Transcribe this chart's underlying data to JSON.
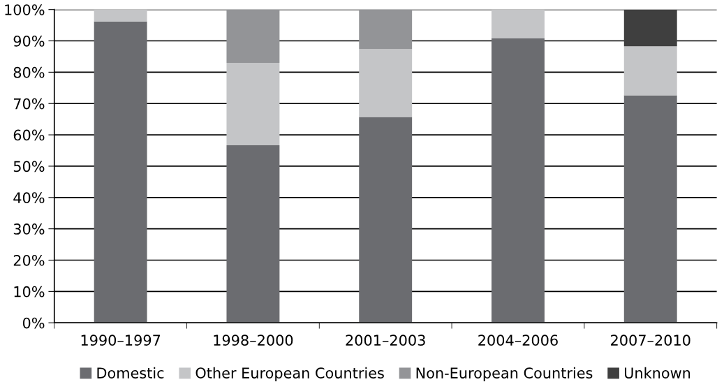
{
  "chart_data": {
    "type": "bar",
    "stacked": true,
    "categories": [
      "1990–1997",
      "1998–2000",
      "2001–2003",
      "2004–2006",
      "2007–2010"
    ],
    "series": [
      {
        "name": "Domestic",
        "color": "#6b6c70",
        "values": [
          96.2,
          56.7,
          65.7,
          90.8,
          72.6
        ]
      },
      {
        "name": "Other European Countries",
        "color": "#c4c5c7",
        "values": [
          3.8,
          26.3,
          21.7,
          9.2,
          15.7
        ]
      },
      {
        "name": "Non-European Countries",
        "color": "#939497",
        "values": [
          null,
          17.0,
          12.6,
          null,
          null
        ]
      },
      {
        "name": "Unknown",
        "color": "#3f3f3f",
        "values": [
          null,
          null,
          null,
          null,
          11.7
        ]
      }
    ],
    "ylim": [
      0,
      100
    ],
    "yticks": [
      {
        "value": 0,
        "label": "0%"
      },
      {
        "value": 10,
        "label": "10%"
      },
      {
        "value": 20,
        "label": "20%"
      },
      {
        "value": 30,
        "label": "30%"
      },
      {
        "value": 40,
        "label": "40%"
      },
      {
        "value": 50,
        "label": "50%"
      },
      {
        "value": 60,
        "label": "60%"
      },
      {
        "value": 70,
        "label": "70%"
      },
      {
        "value": 80,
        "label": "80%"
      },
      {
        "value": 90,
        "label": "90%"
      },
      {
        "value": 100,
        "label": "100%"
      }
    ],
    "grid": "y",
    "legend": "bottom"
  }
}
